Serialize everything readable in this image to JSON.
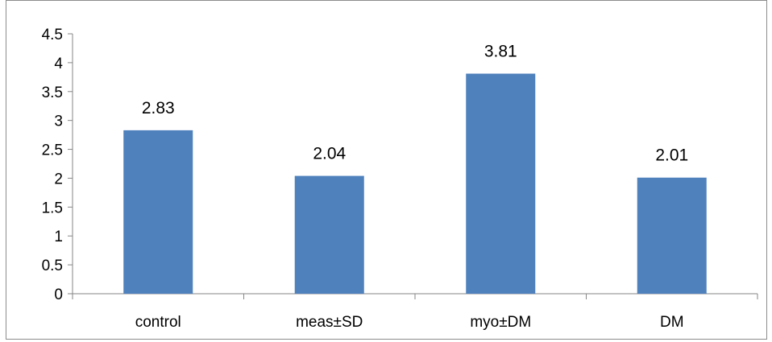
{
  "chart_data": {
    "type": "bar",
    "categories": [
      "control",
      "meas±SD",
      "myo±DM",
      "DM"
    ],
    "values": [
      2.83,
      2.04,
      3.81,
      2.01
    ],
    "data_labels": [
      "2.83",
      "2.04",
      "3.81",
      "2.01"
    ],
    "y_ticks": [
      "0",
      "0.5",
      "1",
      "1.5",
      "2",
      "2.5",
      "3",
      "3.5",
      "4",
      "4.5"
    ],
    "ylim": [
      0,
      4.5
    ],
    "grid": false,
    "legend": "none",
    "bar_color": "#4f81bd",
    "axis_color": "#868686"
  }
}
